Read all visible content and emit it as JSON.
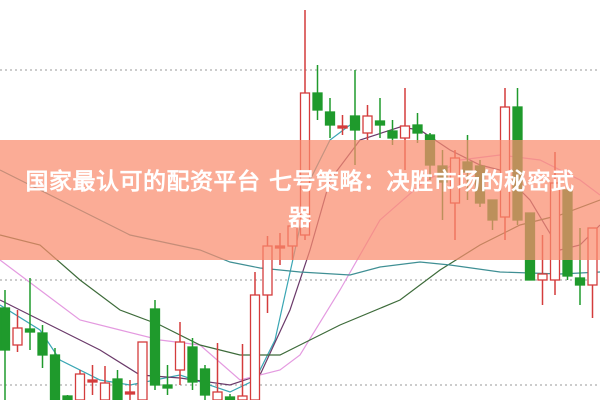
{
  "headline": "国家最认可的配资平台 七号策略：决胜市场的秘密武器",
  "colors": {
    "up": "#d43c3c",
    "down": "#1f9a2c",
    "banner": "#f98c6e",
    "grid": "#9a9a9a"
  },
  "chart_data": {
    "type": "candlestick",
    "note_scale": "unlabeled price axis (relative units 0-100)",
    "candles": [
      [
        23,
        12.5,
        27.5,
        0
      ],
      [
        13.75,
        18,
        22.5,
        12
      ],
      [
        17.75,
        17,
        30.5,
        12.5
      ],
      [
        16.75,
        11.25,
        18.75,
        8
      ],
      [
        11.25,
        0,
        13,
        0
      ],
      [
        1,
        0,
        1.25,
        0
      ],
      [
        0,
        6.5,
        7.5,
        0
      ],
      [
        5,
        5,
        8.75,
        1.25
      ],
      [
        0,
        4.25,
        8.5,
        0
      ],
      [
        5.25,
        0,
        7.5,
        0
      ],
      [
        2,
        2,
        5,
        0
      ],
      [
        0,
        14.5,
        14.5,
        0
      ],
      [
        22.75,
        3.75,
        25,
        2.5
      ],
      [
        3.75,
        3,
        8.75,
        1.25
      ],
      [
        7.5,
        14.5,
        19.5,
        3.75
      ],
      [
        13.25,
        4.5,
        15.5,
        2.5
      ],
      [
        7.75,
        1.25,
        8.75,
        0
      ],
      [
        0,
        2,
        14.25,
        0
      ],
      [
        0.75,
        0,
        1.5,
        0
      ],
      [
        0,
        1,
        14,
        0
      ],
      [
        0,
        26.25,
        32,
        0
      ],
      [
        26.25,
        38.5,
        41,
        21.75
      ],
      [
        38.5,
        38.5,
        41.75,
        33.75
      ],
      [
        38.5,
        43.5,
        45,
        35
      ],
      [
        41.25,
        76.75,
        97.5,
        40
      ],
      [
        76.75,
        72.5,
        83.75,
        70
      ],
      [
        72,
        68.75,
        75.5,
        65.5
      ],
      [
        68.5,
        68.5,
        71.25,
        66.25
      ],
      [
        71,
        67.5,
        82.5,
        58.75
      ],
      [
        66.75,
        71,
        73.75,
        65
      ],
      [
        69.75,
        68.75,
        75.5,
        65.5
      ],
      [
        67.25,
        65.5,
        70,
        63.75
      ],
      [
        65.5,
        68.5,
        78,
        57.5
      ],
      [
        68.75,
        66.75,
        71.75,
        64.25
      ],
      [
        66.25,
        58.75,
        66.75,
        55
      ],
      [
        58.5,
        54.5,
        62.5,
        45
      ],
      [
        49.25,
        60.5,
        62.5,
        40
      ],
      [
        59.5,
        57,
        66.25,
        50
      ],
      [
        58.5,
        49.25,
        60,
        48.25
      ],
      [
        50,
        45,
        50,
        42.5
      ],
      [
        45.75,
        73.25,
        78,
        40
      ],
      [
        73.25,
        45,
        78,
        43.75
      ],
      [
        46.75,
        30,
        46.75,
        30
      ],
      [
        30,
        31.5,
        41.25,
        23.75
      ],
      [
        30,
        54.25,
        62,
        26.25
      ],
      [
        52.5,
        31,
        52.5,
        30
      ],
      [
        30.5,
        28.75,
        43,
        23.75
      ],
      [
        28.75,
        43,
        43,
        20.5
      ]
    ],
    "candle_fields": [
      "open",
      "close",
      "high",
      "low"
    ],
    "moving_averages": [
      {
        "color": "#3aa6b4",
        "points": [
          [
            -0.4,
            23.75
          ],
          [
            2.8,
            17.5
          ],
          [
            4.4,
            10
          ],
          [
            7.6,
            5
          ],
          [
            10,
            3.75
          ],
          [
            14,
            6.25
          ],
          [
            18,
            2
          ],
          [
            20,
            5
          ],
          [
            21.6,
            15
          ],
          [
            23.2,
            37.5
          ],
          [
            24.4,
            55
          ],
          [
            26,
            65
          ],
          [
            27.6,
            68.75
          ]
        ]
      },
      {
        "color": "#6b3a6a",
        "points": [
          [
            -0.4,
            25
          ],
          [
            2,
            21.25
          ],
          [
            4.4,
            17.5
          ],
          [
            7.6,
            12.5
          ],
          [
            10.8,
            6.25
          ],
          [
            14,
            5.5
          ],
          [
            18,
            3.75
          ],
          [
            20.4,
            6.25
          ],
          [
            22.8,
            22.5
          ],
          [
            24.4,
            37.5
          ],
          [
            26,
            55
          ],
          [
            28.4,
            65
          ],
          [
            31.6,
            68.25
          ],
          [
            33.2,
            67.5
          ],
          [
            35.6,
            62.5
          ],
          [
            38,
            58.75
          ],
          [
            39.6,
            57.5
          ],
          [
            42,
            50
          ],
          [
            44.4,
            37.5
          ],
          [
            46,
            38.75
          ],
          [
            47.6,
            43.75
          ]
        ]
      },
      {
        "color": "#e49ae0",
        "points": [
          [
            -0.4,
            35
          ],
          [
            2.8,
            27.5
          ],
          [
            6,
            20
          ],
          [
            9.2,
            17.5
          ],
          [
            12.4,
            15
          ],
          [
            15.6,
            13.75
          ],
          [
            18.8,
            5
          ],
          [
            22,
            7.5
          ],
          [
            23.6,
            11.25
          ],
          [
            26.8,
            27.5
          ],
          [
            30,
            45
          ],
          [
            33.2,
            53.75
          ],
          [
            36.4,
            60
          ],
          [
            39.6,
            61.25
          ],
          [
            42.8,
            60
          ],
          [
            46,
            55
          ],
          [
            47.6,
            51.25
          ]
        ]
      },
      {
        "color": "#3d6b3a",
        "points": [
          [
            -0.4,
            41.25
          ],
          [
            2.8,
            38.75
          ],
          [
            6,
            30
          ],
          [
            9.2,
            22.5
          ],
          [
            12.4,
            18.75
          ],
          [
            15.6,
            13.75
          ],
          [
            18.8,
            11.25
          ],
          [
            22,
            11.25
          ],
          [
            23.6,
            13.75
          ],
          [
            26.8,
            18.75
          ],
          [
            31.6,
            25
          ],
          [
            34.8,
            32.5
          ],
          [
            38,
            38.75
          ],
          [
            41.2,
            43.75
          ],
          [
            44.4,
            46.25
          ],
          [
            47.6,
            50
          ]
        ]
      },
      {
        "color": "#3f8f94",
        "points": [
          [
            -0.4,
            57.5
          ],
          [
            4.4,
            50
          ],
          [
            10,
            41.25
          ],
          [
            15.6,
            37.5
          ],
          [
            18,
            34.5
          ],
          [
            20.4,
            33
          ],
          [
            23.6,
            32
          ],
          [
            27.6,
            31.25
          ],
          [
            30,
            33.25
          ],
          [
            33.2,
            34.5
          ],
          [
            35.6,
            33.75
          ],
          [
            39.6,
            32
          ],
          [
            44.4,
            31.5
          ],
          [
            47.6,
            32
          ]
        ]
      }
    ],
    "gridlines": [
      82.5,
      30,
      3.75
    ],
    "grid": true,
    "ylim": [
      0,
      100
    ]
  }
}
